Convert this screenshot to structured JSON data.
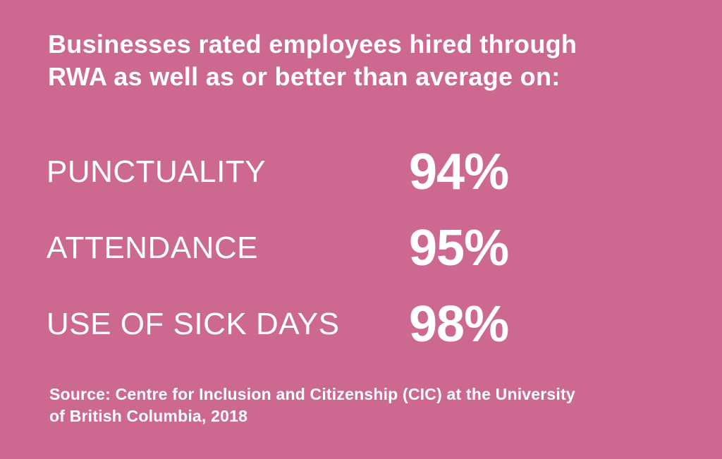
{
  "colors": {
    "background": "#cd6891",
    "text": "#ffffff"
  },
  "headline": {
    "line1": "Businesses rated employees hired through",
    "line2_prefix": "RWA ",
    "line2_emphasis": "as well as or better",
    "line2_suffix": " than average on:"
  },
  "stats": [
    {
      "label": "PUNCTUALITY",
      "value": "94%"
    },
    {
      "label": "ATTENDANCE",
      "value": "95%"
    },
    {
      "label": "USE OF SICK DAYS",
      "value": "98%"
    }
  ],
  "source": {
    "line1": "Source: Centre for Inclusion and Citizenship (CIC) at the University",
    "line2": "of British Columbia, 2018"
  }
}
